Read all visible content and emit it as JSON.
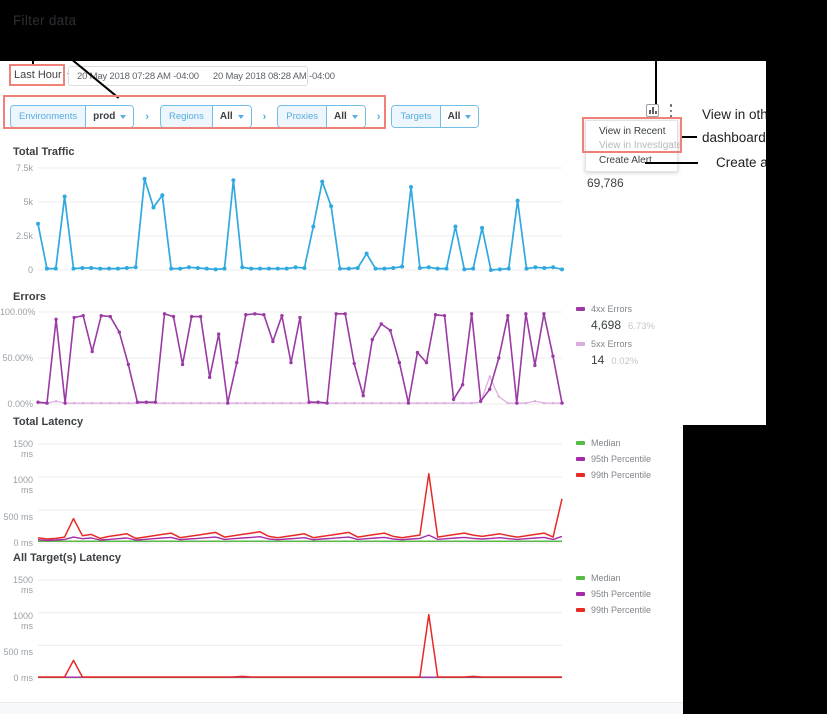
{
  "annotations": {
    "filter_data_label": "Filter data",
    "callout_line1": "View in oth",
    "callout_line2": "dashboard",
    "callout_create": "Create a",
    "highlight_color": "#f0807a"
  },
  "toolbar": {
    "time_range_button": "Last Hour",
    "start_date": "20 May 2018 07:28 AM -04:00",
    "end_date": "20 May 2018 08:28 AM -04:00"
  },
  "filter_bar": {
    "separator": "›",
    "groups": [
      {
        "label": "Environments",
        "value": "prod"
      },
      {
        "label": "Regions",
        "value": "All"
      },
      {
        "label": "Proxies",
        "value": "All"
      },
      {
        "label": "Targets",
        "value": "All"
      }
    ]
  },
  "menu": {
    "items": [
      {
        "label": "View in Recent"
      },
      {
        "label": "View in Investigate"
      },
      {
        "label": "Create Alert"
      }
    ]
  },
  "chart_data": [
    {
      "type": "line",
      "title": "Total Traffic",
      "total_label": "69,786",
      "ylabels": [
        "7.5k",
        "5k",
        "2.5k",
        "0"
      ],
      "ymax": 7500,
      "grid": true,
      "series": [
        {
          "name": "traffic",
          "color": "#2fa9e0",
          "width": 1.7,
          "dots": 2,
          "values": [
            3400,
            100,
            100,
            5400,
            100,
            150,
            150,
            100,
            100,
            100,
            150,
            200,
            6700,
            4600,
            5500,
            100,
            100,
            200,
            150,
            100,
            50,
            100,
            6600,
            200,
            100,
            100,
            100,
            100,
            100,
            200,
            150,
            3200,
            6500,
            4700,
            100,
            100,
            150,
            1200,
            100,
            100,
            150,
            250,
            6100,
            150,
            200,
            100,
            100,
            3200,
            50,
            100,
            3100,
            0,
            50,
            100,
            5100,
            100,
            200,
            150,
            200,
            50
          ]
        }
      ]
    },
    {
      "type": "line",
      "title": "Errors",
      "ylabels": [
        "100.00%",
        "50.00%",
        "0.00%"
      ],
      "ymax": 100,
      "grid": true,
      "legend": [
        {
          "label": "4xx Errors",
          "value": "4,698",
          "pct": "6.73%",
          "color": "#9a3aa5"
        },
        {
          "label": "5xx Errors",
          "value": "14",
          "pct": "0.02%",
          "color": "#dcaade"
        }
      ],
      "series": [
        {
          "name": "5xx Errors",
          "color": "#dcaade",
          "width": 1.2,
          "dots": 1.2,
          "values": [
            1,
            1,
            3,
            1,
            1,
            1,
            1,
            1,
            1,
            1,
            1,
            1,
            1,
            1,
            1,
            1,
            1,
            1,
            1,
            1,
            1,
            1,
            1,
            1,
            1,
            1,
            1,
            1,
            1,
            1,
            1,
            1,
            1,
            1,
            1,
            1,
            1,
            1,
            1,
            1,
            1,
            1,
            1,
            1,
            1,
            1,
            1,
            1,
            1,
            2,
            30,
            8,
            1,
            1,
            1,
            3,
            1,
            1,
            1
          ]
        },
        {
          "name": "4xx Errors",
          "color": "#9a3aa5",
          "width": 1.6,
          "dots": 1.7,
          "values": [
            2,
            1,
            92,
            1,
            94,
            96,
            57,
            96,
            95,
            78,
            43,
            2,
            2,
            2,
            98,
            95,
            43,
            95,
            95,
            29,
            76,
            1,
            45,
            97,
            98,
            97,
            68,
            96,
            45,
            94,
            2,
            2,
            1,
            98,
            98,
            44,
            9,
            70,
            87,
            80,
            45,
            1,
            56,
            45,
            97,
            96,
            5,
            21,
            98,
            3,
            16,
            50,
            96,
            1,
            98,
            42,
            98,
            52,
            1
          ]
        }
      ]
    },
    {
      "type": "line",
      "title": "Total Latency",
      "ylabels": [
        "1500 ms",
        "1000 ms",
        "500 ms",
        "0 ms"
      ],
      "ymax": 1500,
      "grid": true,
      "legend": [
        {
          "label": "Median",
          "color": "#58b947"
        },
        {
          "label": "95th Percentile",
          "color": "#a62ba8"
        },
        {
          "label": "99th Percentile",
          "color": "#e62a25"
        }
      ],
      "series": [
        {
          "name": "Median",
          "color": "#58b947",
          "width": 1.5,
          "values": [
            25,
            25,
            25,
            25,
            25,
            25,
            25,
            25,
            25,
            25,
            25,
            25,
            25,
            25,
            25,
            25,
            25,
            25,
            25,
            25,
            25,
            25,
            25,
            25,
            25,
            25,
            25,
            25,
            25,
            25,
            25,
            25,
            25,
            25,
            25,
            25,
            25,
            25,
            25,
            25,
            25,
            25,
            25,
            25,
            25,
            25,
            25,
            25,
            25,
            25,
            25,
            25,
            25,
            25,
            25,
            25,
            25,
            25,
            25,
            25
          ]
        },
        {
          "name": "95th Percentile",
          "color": "#a62ba8",
          "width": 1.4,
          "values": [
            50,
            40,
            45,
            55,
            90,
            65,
            75,
            45,
            55,
            65,
            75,
            45,
            55,
            65,
            75,
            85,
            50,
            60,
            70,
            80,
            90,
            55,
            65,
            75,
            85,
            95,
            60,
            50,
            60,
            70,
            80,
            50,
            60,
            70,
            80,
            90,
            55,
            65,
            75,
            85,
            60,
            50,
            60,
            70,
            120,
            55,
            65,
            75,
            85,
            70,
            60,
            70,
            80,
            65,
            55,
            65,
            75,
            85,
            55,
            100
          ]
        },
        {
          "name": "99th Percentile",
          "color": "#e62a25",
          "width": 1.5,
          "values": [
            80,
            60,
            70,
            90,
            370,
            110,
            130,
            70,
            100,
            120,
            140,
            70,
            90,
            110,
            130,
            150,
            80,
            100,
            120,
            140,
            160,
            90,
            110,
            130,
            150,
            170,
            100,
            80,
            100,
            120,
            140,
            80,
            100,
            120,
            140,
            160,
            90,
            110,
            130,
            150,
            100,
            80,
            100,
            120,
            1050,
            90,
            110,
            130,
            150,
            120,
            100,
            120,
            140,
            110,
            90,
            110,
            130,
            150,
            90,
            670
          ]
        }
      ]
    },
    {
      "type": "line",
      "title": "All Target(s) Latency",
      "ylabels": [
        "1500 ms",
        "1000 ms",
        "500 ms",
        "0 ms"
      ],
      "ymax": 1500,
      "grid": true,
      "legend": [
        {
          "label": "Median",
          "color": "#58b947"
        },
        {
          "label": "95th Percentile",
          "color": "#a62ba8"
        },
        {
          "label": "99th Percentile",
          "color": "#e62a25"
        }
      ],
      "series": [
        {
          "name": "Median",
          "color": "#58b947",
          "width": 1.3,
          "values": [
            8,
            8,
            8,
            8,
            8,
            8,
            8,
            8,
            8,
            8,
            8,
            8,
            8,
            8,
            8,
            8,
            8,
            8,
            8,
            8,
            8,
            8,
            8,
            8,
            8,
            8,
            8,
            8,
            8,
            8,
            8,
            8,
            8,
            8,
            8,
            8,
            8,
            8,
            8,
            8,
            8,
            8,
            8,
            8,
            8,
            8,
            8,
            8,
            8,
            8,
            8,
            8,
            8,
            8,
            8,
            8,
            8,
            8,
            8,
            8
          ]
        },
        {
          "name": "95th Percentile",
          "color": "#a62ba8",
          "width": 1.3,
          "values": [
            12,
            12,
            12,
            12,
            12,
            12,
            12,
            12,
            12,
            12,
            12,
            12,
            12,
            12,
            12,
            12,
            12,
            12,
            12,
            12,
            12,
            12,
            12,
            12,
            12,
            12,
            12,
            12,
            12,
            12,
            12,
            12,
            12,
            12,
            12,
            12,
            12,
            12,
            12,
            12,
            12,
            12,
            12,
            12,
            12,
            12,
            12,
            12,
            12,
            12,
            12,
            12,
            12,
            12,
            12,
            12,
            12,
            12,
            12,
            12
          ]
        },
        {
          "name": "99th Percentile",
          "color": "#e62a25",
          "width": 1.5,
          "values": [
            15,
            15,
            15,
            15,
            270,
            15,
            15,
            15,
            15,
            15,
            15,
            15,
            15,
            15,
            15,
            15,
            15,
            15,
            15,
            15,
            15,
            15,
            15,
            25,
            15,
            15,
            15,
            15,
            15,
            15,
            15,
            15,
            15,
            15,
            15,
            15,
            15,
            15,
            15,
            15,
            15,
            15,
            15,
            15,
            970,
            15,
            15,
            15,
            15,
            25,
            15,
            15,
            15,
            15,
            15,
            15,
            15,
            15,
            15,
            15
          ]
        }
      ]
    }
  ]
}
